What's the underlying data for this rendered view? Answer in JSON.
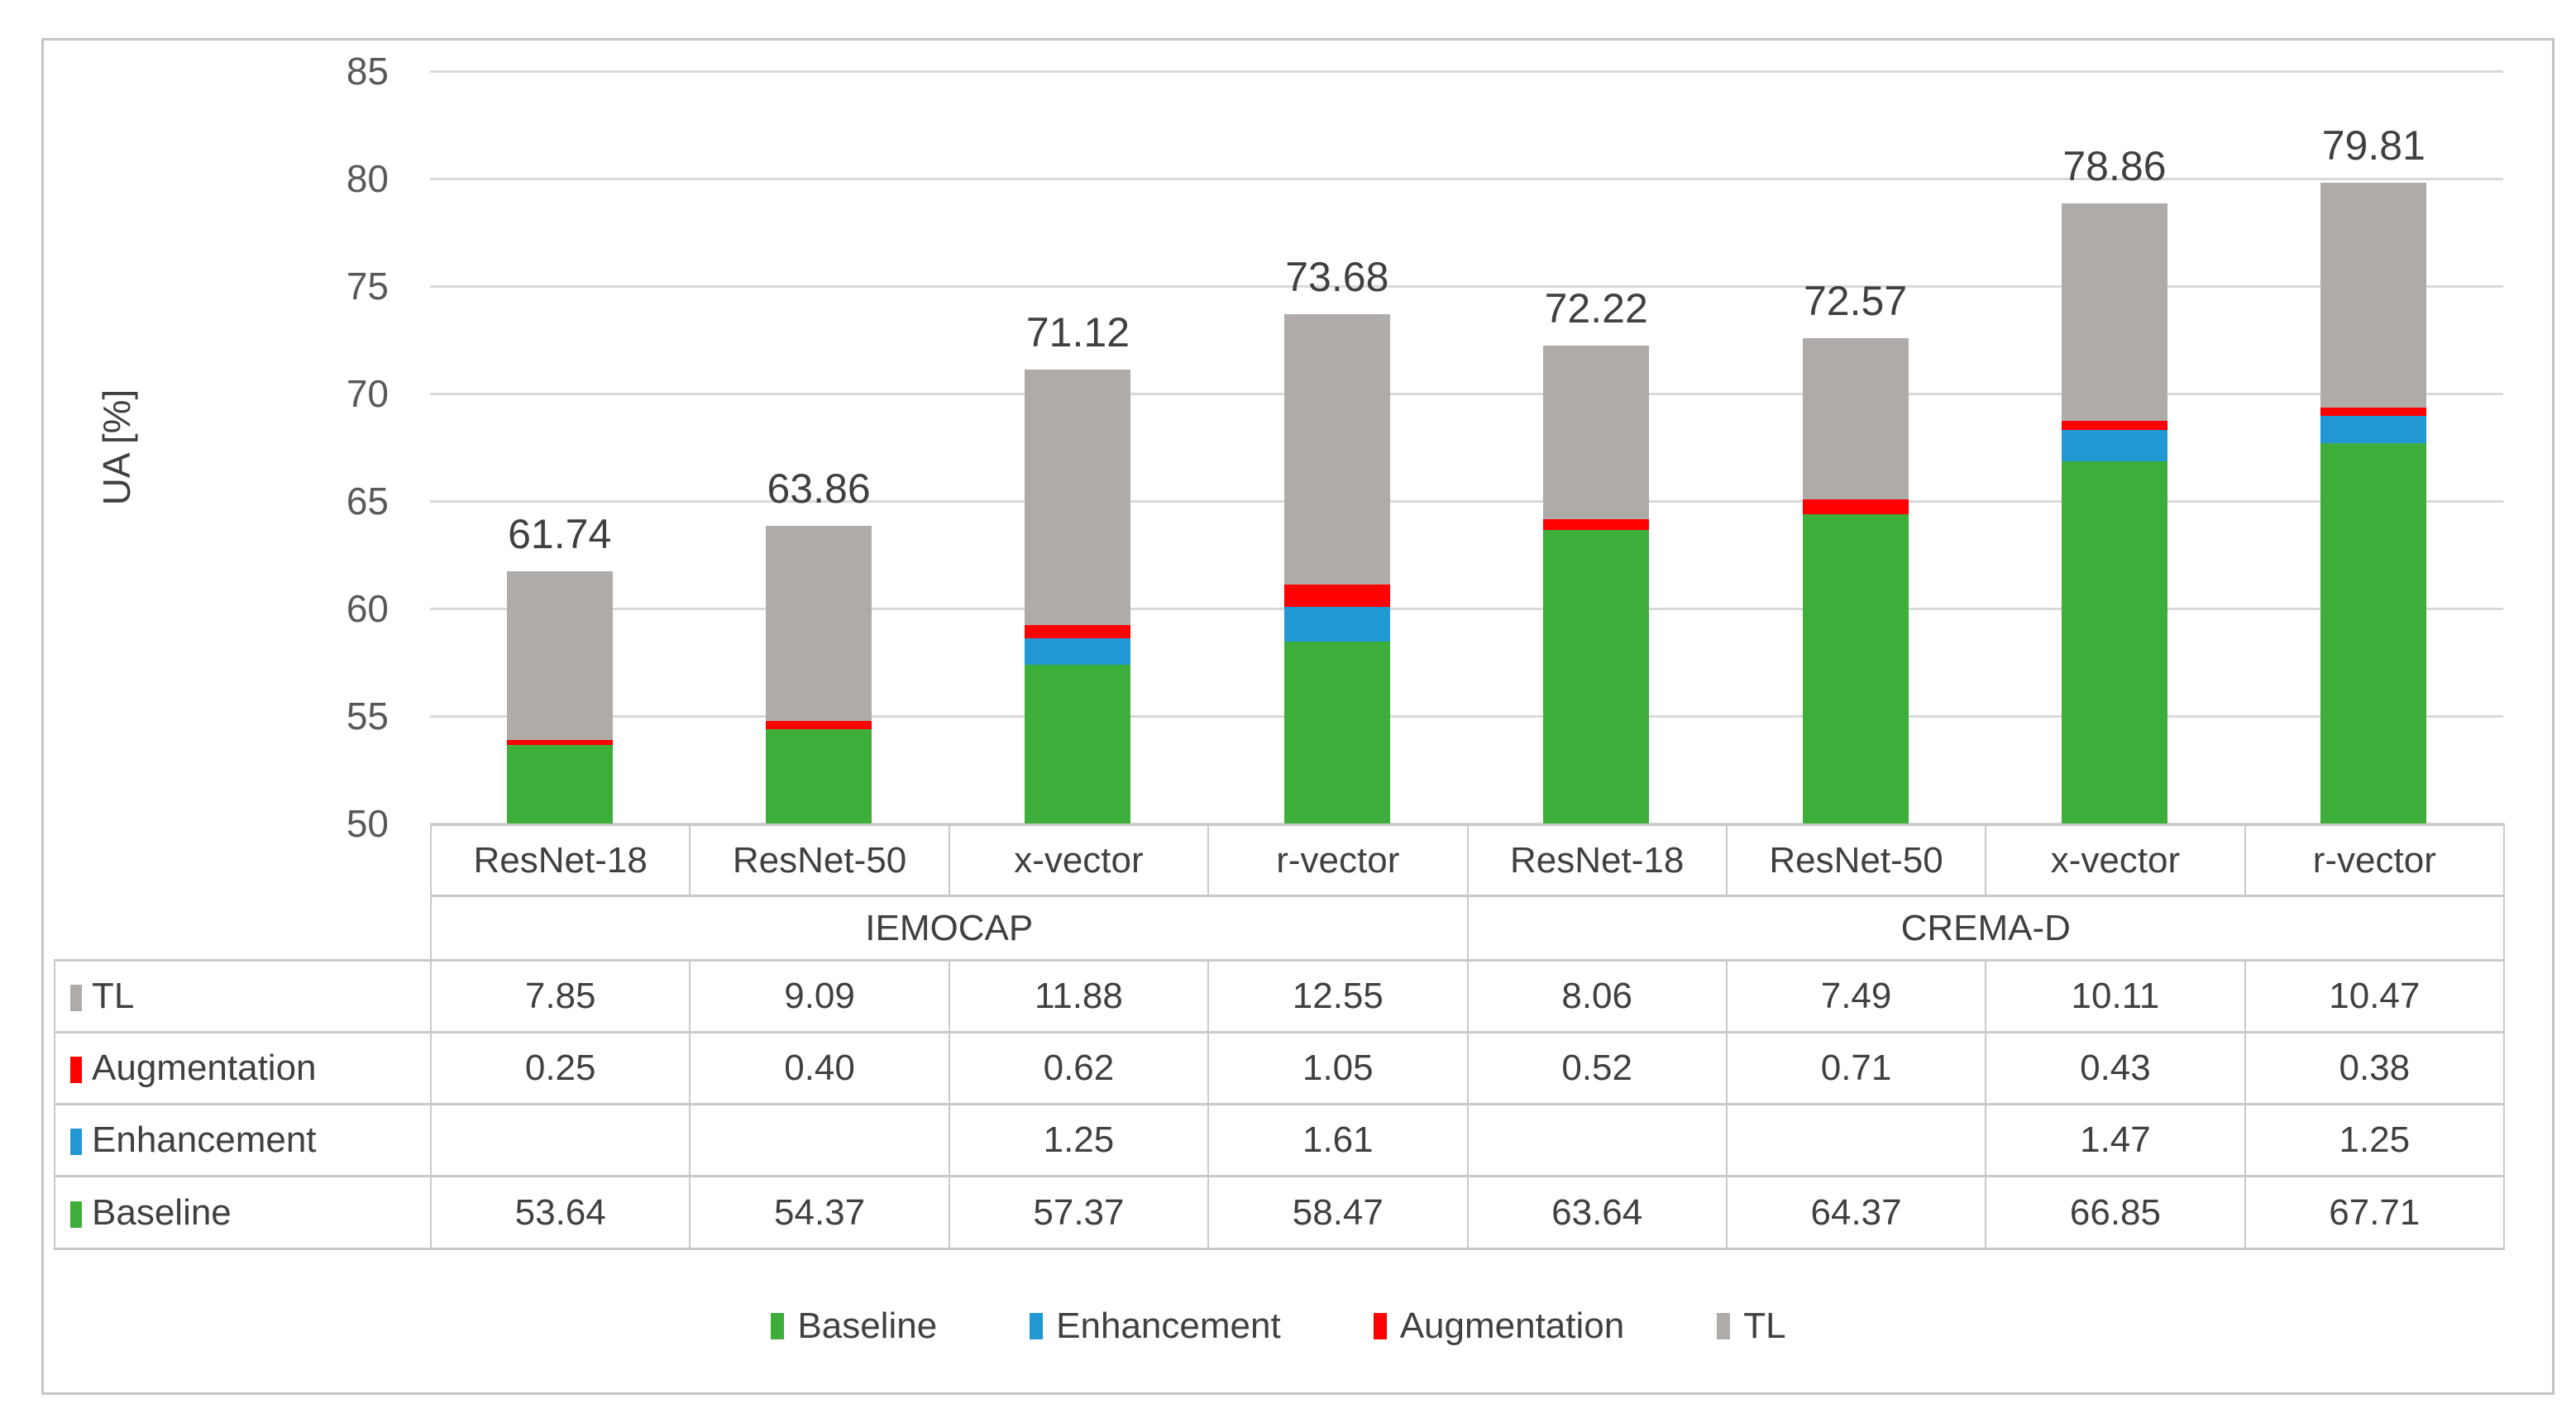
{
  "figure": {
    "border_color": "#C5C5C5"
  },
  "chart_data": {
    "type": "bar",
    "stacked": true,
    "title": "",
    "xlabel": "",
    "ylabel": "UA [%]",
    "ylim": [
      50,
      85
    ],
    "ytick_step": 5,
    "yticks": [
      50,
      55,
      60,
      65,
      70,
      75,
      80,
      85
    ],
    "grid": true,
    "legend_position": "bottom",
    "groups": [
      {
        "label": "IEMOCAP",
        "span": 4
      },
      {
        "label": "CREMA-D",
        "span": 4
      }
    ],
    "categories": [
      "ResNet-18",
      "ResNet-50",
      "x-vector",
      "r-vector",
      "ResNet-18",
      "ResNet-50",
      "x-vector",
      "r-vector"
    ],
    "series": [
      {
        "name": "Baseline",
        "color": "#3EAE3B",
        "values": [
          53.64,
          54.37,
          57.37,
          58.47,
          63.64,
          64.37,
          66.85,
          67.71
        ]
      },
      {
        "name": "Enhancement",
        "color": "#2198D3",
        "values": [
          null,
          null,
          1.25,
          1.61,
          null,
          null,
          1.47,
          1.25
        ]
      },
      {
        "name": "Augmentation",
        "color": "#FF0000",
        "values": [
          0.25,
          0.4,
          0.62,
          1.05,
          0.52,
          0.71,
          0.43,
          0.38
        ]
      },
      {
        "name": "TL",
        "color": "#AFABA9",
        "values": [
          7.85,
          9.09,
          11.88,
          12.55,
          8.06,
          7.49,
          10.11,
          10.47
        ]
      }
    ],
    "totals": [
      61.74,
      63.86,
      71.12,
      73.68,
      72.22,
      72.57,
      78.86,
      79.81
    ],
    "legend": [
      "Baseline",
      "Enhancement",
      "Augmentation",
      "TL"
    ],
    "colors": {
      "gridline": "#D9D9D9",
      "tick_text": "#595959",
      "label_text": "#404040",
      "table_border": "#C9C9C9"
    }
  },
  "table": {
    "column_headers": [
      "ResNet-18",
      "ResNet-50",
      "x-vector",
      "r-vector",
      "ResNet-18",
      "ResNet-50",
      "x-vector",
      "r-vector"
    ],
    "group_headers": [
      {
        "label": "IEMOCAP",
        "span": 4
      },
      {
        "label": "CREMA-D",
        "span": 4
      }
    ],
    "rows": [
      {
        "label": "TL",
        "key_color": "#AFABA9",
        "values": [
          7.85,
          9.09,
          11.88,
          12.55,
          8.06,
          7.49,
          10.11,
          10.47
        ]
      },
      {
        "label": "Augmentation",
        "key_color": "#FF0000",
        "values": [
          0.25,
          0.4,
          0.62,
          1.05,
          0.52,
          0.71,
          0.43,
          0.38
        ]
      },
      {
        "label": "Enhancement",
        "key_color": "#2198D3",
        "values": [
          null,
          null,
          1.25,
          1.61,
          null,
          null,
          1.47,
          1.25
        ]
      },
      {
        "label": "Baseline",
        "key_color": "#3EAE3B",
        "values": [
          53.64,
          54.37,
          57.37,
          58.47,
          63.64,
          64.37,
          66.85,
          67.71
        ]
      }
    ]
  },
  "legend": {
    "items": [
      {
        "label": "Baseline",
        "color": "#3EAE3B"
      },
      {
        "label": "Enhancement",
        "color": "#2198D3"
      },
      {
        "label": "Augmentation",
        "color": "#FF0000"
      },
      {
        "label": "TL",
        "color": "#AFABA9"
      }
    ]
  }
}
